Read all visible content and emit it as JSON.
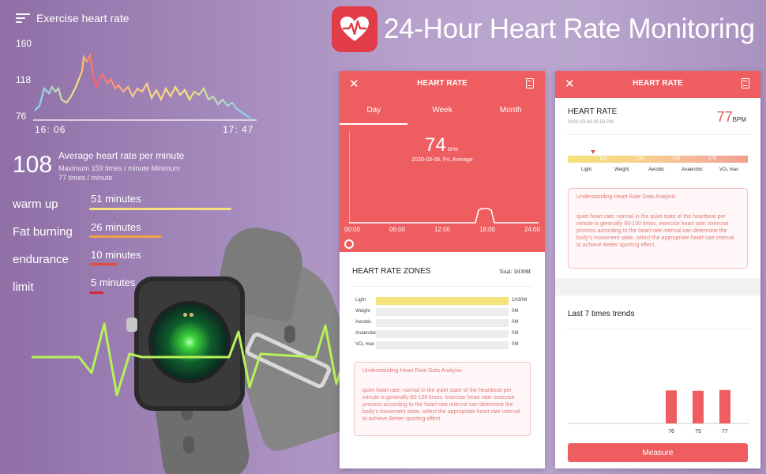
{
  "header": {
    "title": "24-Hour Heart Rate Monitoring",
    "logo_icon": "heart-pulse-icon",
    "logo_color": "#e23c49"
  },
  "exercise": {
    "title": "Exercise heart rate",
    "y_ticks": [
      "160",
      "118",
      "76"
    ],
    "x_start": "16: 06",
    "x_end": "17: 47",
    "avg_value": "108",
    "avg_label": "Average heart rate per minute",
    "avg_detail_1": "Maximum 159 times / minute Minimum",
    "avg_detail_2": "77 times / minute",
    "zones": [
      {
        "name": "warm up",
        "value": "51 minutes",
        "color": "#f5e07a",
        "fraction": 1.0
      },
      {
        "name": "Fat burning",
        "value": "26 minutes",
        "color": "#f2a144",
        "fraction": 0.51
      },
      {
        "name": "endurance",
        "value": "10 minutes",
        "color": "#e8493c",
        "fraction": 0.2
      },
      {
        "name": "limit",
        "value": "5 minutes",
        "color": "#d5263a",
        "fraction": 0.1
      }
    ]
  },
  "phone1": {
    "title": "HEART RATE",
    "tabs": [
      "Day",
      "Week",
      "Month"
    ],
    "active_tab": "Day",
    "value": "74",
    "unit": "BPM",
    "date_text": "2020-03-06, Fri, Average",
    "x_ticks": [
      "00:00",
      "06:00",
      "12:00",
      "18:00",
      "24:00"
    ],
    "zones_title": "HEART RATE ZONES",
    "zones_total": "Total: 1H30M",
    "zones": [
      {
        "label": "Light",
        "value": "1H30M",
        "fraction": 1.0
      },
      {
        "label": "Weight",
        "value": "0M",
        "fraction": 0
      },
      {
        "label": "Aerobic",
        "value": "0M",
        "fraction": 0
      },
      {
        "label": "Anaerobic",
        "value": "0M",
        "fraction": 0
      },
      {
        "label": "VO₂ max",
        "value": "0M",
        "fraction": 0
      }
    ],
    "info_title": "Understanding Heart Rate Data Analysis",
    "info_body": "quiet heart rate: normal in the quiet state of the heartbeat per minute is generally 60-100 times. exercise heart rate: exercise process according to the heart rate interval can determine the body's movement state, select the appropriate heart rate interval to achieve Better sporting effect."
  },
  "phone2": {
    "title": "HEART RATE",
    "section": "HEART RATE",
    "date": "2020-03-06 05:50 PM",
    "value": "77",
    "unit": "BPM",
    "scale_numbers": [
      "119",
      "139",
      "158",
      "178"
    ],
    "scale_labels": [
      "Light",
      "Weight",
      "Aerobic",
      "Anaerobic",
      "VO₂ max"
    ],
    "info_title": "Understanding Heart Rate Data Analysis",
    "info_body": "quiet heart rate: normal in the quiet state of the heartbeat per minute is generally 60-100 times. exercise heart rate: exercise process according to the heart rate interval can determine the body's movement state, select the appropriate heart rate interval to achieve Better sporting effect.",
    "trend_title": "Last 7 times trends",
    "trend_values": [
      76,
      75,
      77
    ],
    "trend_labels": [
      "76",
      "75",
      "77"
    ],
    "measure_label": "Measure",
    "accent": "#ee5d5f"
  }
}
